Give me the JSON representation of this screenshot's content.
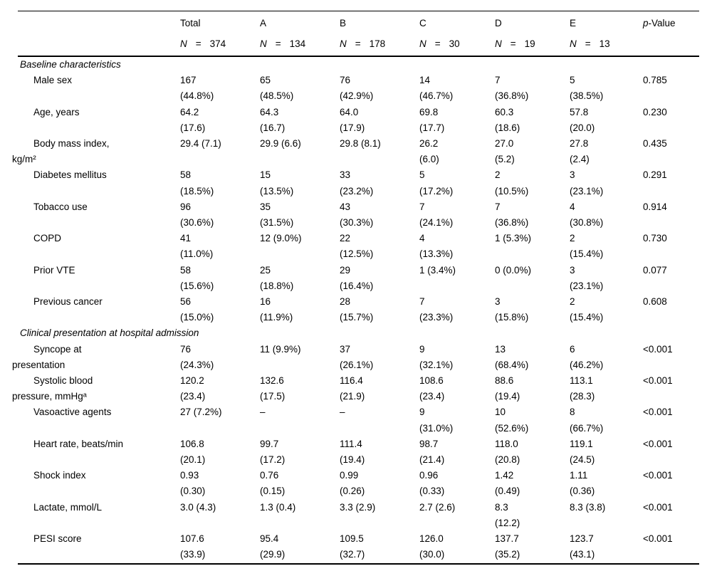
{
  "page": {
    "background_color": "#ffffff",
    "text_color": "#000000"
  },
  "table": {
    "n_symbol": "N",
    "equals": "=",
    "columns": [
      {
        "label": "Total",
        "n": "374"
      },
      {
        "label": "A",
        "n": "134"
      },
      {
        "label": "B",
        "n": "178"
      },
      {
        "label": "C",
        "n": "30"
      },
      {
        "label": "D",
        "n": "19"
      },
      {
        "label": "E",
        "n": "13"
      }
    ],
    "pvalue_header": {
      "italic": "p",
      "rest": "-Value"
    },
    "rows": [
      {
        "type": "section",
        "label": "Baseline characteristics"
      },
      {
        "type": "data",
        "label": "Male sex",
        "values": [
          "167\n(44.8%)",
          "65\n(48.5%)",
          "76\n(42.9%)",
          "14\n(46.7%)",
          "7\n(36.8%)",
          "5\n(38.5%)"
        ],
        "p": "0.785"
      },
      {
        "type": "data",
        "label": "Age, years",
        "values": [
          "64.2\n(17.6)",
          "64.3\n(16.7)",
          "64.0\n(17.9)",
          "69.8\n(17.7)",
          "60.3\n(18.6)",
          "57.8\n(20.0)"
        ],
        "p": "0.230"
      },
      {
        "type": "data",
        "label": "Body mass index,\nkg/m²",
        "values": [
          "29.4 (7.1)",
          "29.9 (6.6)",
          "29.8 (8.1)",
          "26.2\n(6.0)",
          "27.0\n(5.2)",
          "27.8\n(2.4)"
        ],
        "p": "0.435"
      },
      {
        "type": "data",
        "label": "Diabetes mellitus",
        "values": [
          "58\n(18.5%)",
          "15\n(13.5%)",
          "33\n(23.2%)",
          "5\n(17.2%)",
          "2\n(10.5%)",
          "3\n(23.1%)"
        ],
        "p": "0.291"
      },
      {
        "type": "data",
        "label": "Tobacco use",
        "values": [
          "96\n(30.6%)",
          "35\n(31.5%)",
          "43\n(30.3%)",
          "7\n(24.1%)",
          "7\n(36.8%)",
          "4\n(30.8%)"
        ],
        "p": "0.914"
      },
      {
        "type": "data",
        "label": "COPD",
        "values": [
          "41\n(11.0%)",
          "12 (9.0%)",
          "22\n(12.5%)",
          "4\n(13.3%)",
          "1 (5.3%)",
          "2\n(15.4%)"
        ],
        "p": "0.730"
      },
      {
        "type": "data",
        "label": "Prior VTE",
        "values": [
          "58\n(15.6%)",
          "25\n(18.8%)",
          "29\n(16.4%)",
          "1 (3.4%)",
          "0 (0.0%)",
          "3\n(23.1%)"
        ],
        "p": "0.077"
      },
      {
        "type": "data",
        "label": "Previous cancer",
        "values": [
          "56\n(15.0%)",
          "16\n(11.9%)",
          "28\n(15.7%)",
          "7\n(23.3%)",
          "3\n(15.8%)",
          "2\n(15.4%)"
        ],
        "p": "0.608"
      },
      {
        "type": "section",
        "label": "Clinical presentation at hospital admission"
      },
      {
        "type": "data",
        "label": "Syncope at\npresentation",
        "values": [
          "76\n(24.3%)",
          "11 (9.9%)",
          "37\n(26.1%)",
          "9\n(32.1%)",
          "13\n(68.4%)",
          "6\n(46.2%)"
        ],
        "p": "<0.001"
      },
      {
        "type": "data",
        "label": "Systolic blood\npressure, mmHgᵃ",
        "values": [
          "120.2\n(23.4)",
          "132.6\n(17.5)",
          "116.4\n(21.9)",
          "108.6\n(23.4)",
          "88.6\n(19.4)",
          "113.1\n(28.3)"
        ],
        "p": "<0.001"
      },
      {
        "type": "data",
        "label": "Vasoactive agents",
        "values": [
          "27 (7.2%)",
          "–",
          "–",
          "9\n(31.0%)",
          "10\n(52.6%)",
          "8\n(66.7%)"
        ],
        "p": "<0.001"
      },
      {
        "type": "data",
        "label": "Heart rate, beats/min",
        "values": [
          "106.8\n(20.1)",
          "99.7\n(17.2)",
          "111.4\n(19.4)",
          "98.7\n(21.4)",
          "118.0\n(20.8)",
          "119.1\n(24.5)"
        ],
        "p": "<0.001"
      },
      {
        "type": "data",
        "label": "Shock index",
        "values": [
          "0.93\n(0.30)",
          "0.76\n(0.15)",
          "0.99\n(0.26)",
          "0.96\n(0.33)",
          "1.42\n(0.49)",
          "1.11\n(0.36)"
        ],
        "p": "<0.001"
      },
      {
        "type": "data",
        "label": "Lactate, mmol/L",
        "values": [
          "3.0 (4.3)",
          "1.3 (0.4)",
          "3.3 (2.9)",
          "2.7 (2.6)",
          "8.3\n(12.2)",
          "8.3 (3.8)"
        ],
        "p": "<0.001"
      },
      {
        "type": "data",
        "label": "PESI score",
        "values": [
          "107.6\n(33.9)",
          "95.4\n(29.9)",
          "109.5\n(32.7)",
          "126.0\n(30.0)",
          "137.7\n(35.2)",
          "123.7\n(43.1)"
        ],
        "p": "<0.001"
      }
    ]
  }
}
